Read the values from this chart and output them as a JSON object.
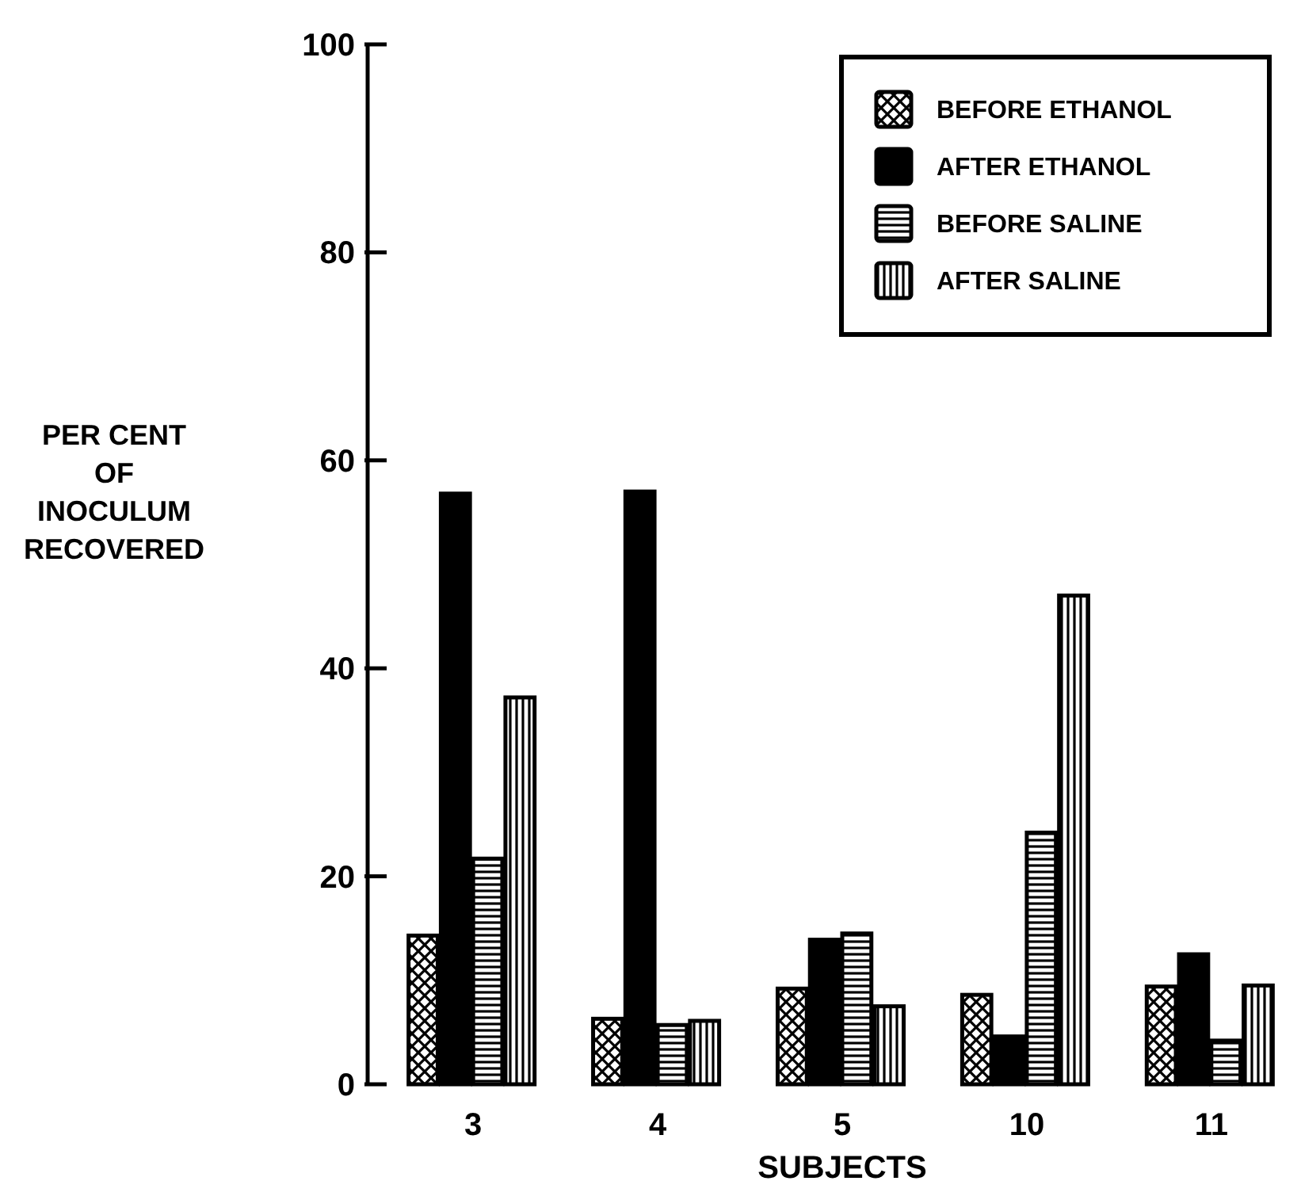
{
  "chart_data": {
    "type": "bar",
    "xlabel": "SUBJECTS",
    "ylabel": "PER CENT OF INOCULUM RECOVERED",
    "categories": [
      "3",
      "4",
      "5",
      "10",
      "11"
    ],
    "series": [
      {
        "name": "BEFORE ETHANOL",
        "color": "#000000",
        "values": [
          14.3,
          6.3,
          9.2,
          8.6,
          9.4
        ]
      },
      {
        "name": "AFTER ETHANOL",
        "color": "#000000",
        "values": [
          56.8,
          57,
          13.9,
          4.6,
          12.5
        ]
      },
      {
        "name": "BEFORE SALINE",
        "color": "#000000",
        "values": [
          21.7,
          5.7,
          14.5,
          24.2,
          4.2
        ]
      },
      {
        "name": "AFTER SALINE",
        "color": "#000000",
        "values": [
          37.2,
          6.1,
          7.5,
          47,
          9.5
        ]
      }
    ],
    "ylim": [
      0,
      100
    ],
    "yticks": [
      0,
      20,
      40,
      60,
      80,
      100
    ],
    "legend": "top right"
  }
}
